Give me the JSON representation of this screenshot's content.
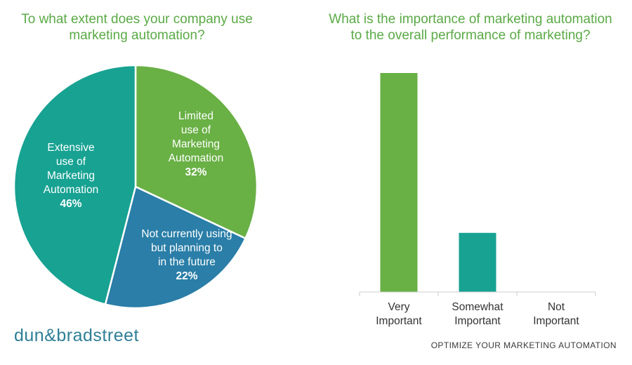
{
  "pie_title": "To what extent does your company use\nmarketing automation?",
  "bar_title": "What is the importance of marketing automation\nto the overall performance of marketing?",
  "logo": "dun&bradstreet",
  "footer": "OPTIMIZE YOUR MARKETING AUTOMATION",
  "colors": {
    "accent": "#5aaa45",
    "teal": "#17a292",
    "blue": "#2a7ea8"
  },
  "chart_data": [
    {
      "type": "pie",
      "title": "To what extent does your company use marketing automation?",
      "slices": [
        {
          "label": [
            "Limited",
            "use of",
            "Marketing",
            "Automation"
          ],
          "value": 32,
          "display": "32%",
          "color": "#69b045"
        },
        {
          "label": [
            "Not currently using",
            "but planning to",
            "in the future"
          ],
          "value": 22,
          "display": "22%",
          "color": "#2a7ea8"
        },
        {
          "label": [
            "Extensive",
            "use of",
            "Marketing",
            "Automation"
          ],
          "value": 46,
          "display": "46%",
          "color": "#17a292"
        }
      ]
    },
    {
      "type": "bar",
      "title": "What is the importance of marketing automation to the overall performance of marketing?",
      "categories": [
        [
          "Very",
          "Important"
        ],
        [
          "Somewhat",
          "Important"
        ],
        [
          "Not",
          "Important"
        ]
      ],
      "values": [
        100,
        27,
        0
      ],
      "colors": [
        "#69b045",
        "#17a292",
        "#17a292"
      ],
      "ylim": [
        0,
        100
      ],
      "grid": false,
      "legend": "none"
    }
  ]
}
